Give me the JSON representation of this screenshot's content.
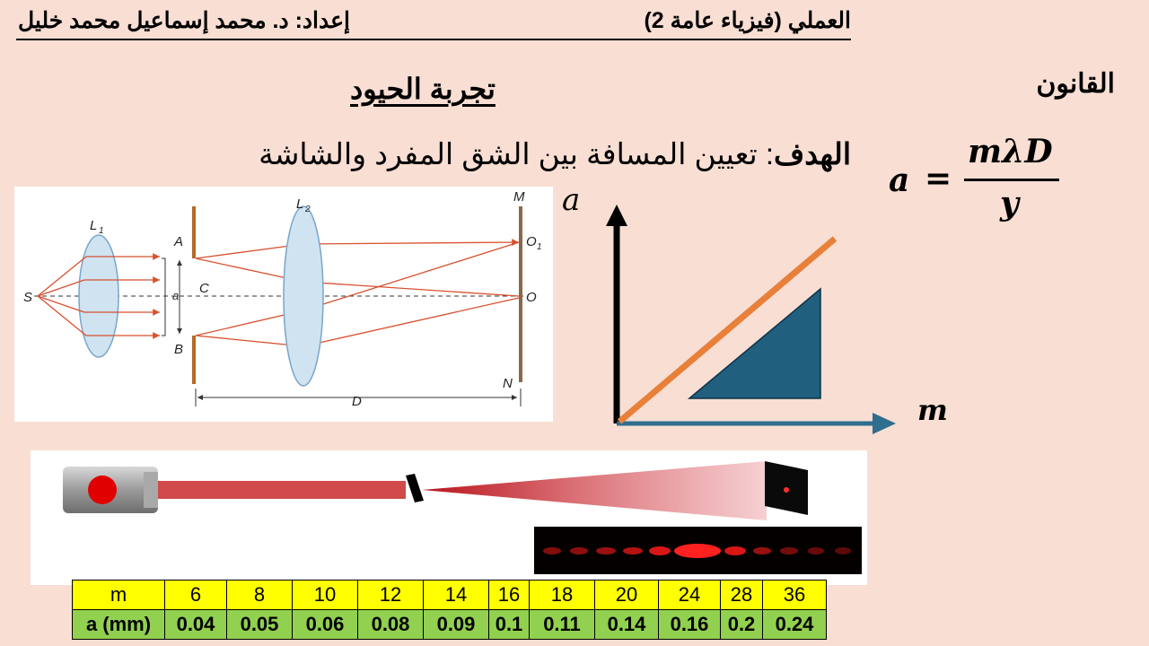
{
  "header": {
    "course": "العملي (فيزياء عامة 2)",
    "author": "إعداد: د. محمد إسماعيل محمد خليل"
  },
  "title": "تجربة الحيود",
  "law_label": "القانون",
  "goal": {
    "label": "الهدف",
    "text": ": تعيين المسافة بين الشق المفرد والشاشة"
  },
  "formula": {
    "lhs": "a",
    "numerator": "mλD",
    "denominator": "y"
  },
  "diagram_labels": {
    "S": "S",
    "L1": "L",
    "L1_sub": "1",
    "L2": "L",
    "L2_sub": "2",
    "A": "A",
    "B": "B",
    "C": "C",
    "a": "a",
    "M": "M",
    "N": "N",
    "O1": "O",
    "O1_sub": "1",
    "O": "O",
    "D": "D"
  },
  "graph": {
    "y_axis_label": "a",
    "x_axis_label": "m",
    "colors": {
      "line": "#e8803a",
      "triangle": "#215f7f",
      "axis_x": "#2e6e8e",
      "axis_y": "#000000"
    }
  },
  "table": {
    "row_m": {
      "label": "m",
      "values": [
        "6",
        "8",
        "10",
        "12",
        "14",
        "16",
        "18",
        "20",
        "24",
        "28",
        "36"
      ]
    },
    "row_a": {
      "label": "a (mm)",
      "values": [
        "0.04",
        "0.05",
        "0.06",
        "0.08",
        "0.09",
        "0.1",
        "0.11",
        "0.14",
        "0.16",
        "0.2",
        "0.24"
      ]
    }
  },
  "chart_data": {
    "type": "table",
    "columns": [
      "m",
      "a (mm)"
    ],
    "rows": [
      [
        6,
        0.04
      ],
      [
        8,
        0.05
      ],
      [
        10,
        0.06
      ],
      [
        12,
        0.08
      ],
      [
        14,
        0.09
      ],
      [
        16,
        0.1
      ],
      [
        18,
        0.11
      ],
      [
        20,
        0.14
      ],
      [
        24,
        0.16
      ],
      [
        28,
        0.2
      ],
      [
        36,
        0.24
      ]
    ]
  }
}
